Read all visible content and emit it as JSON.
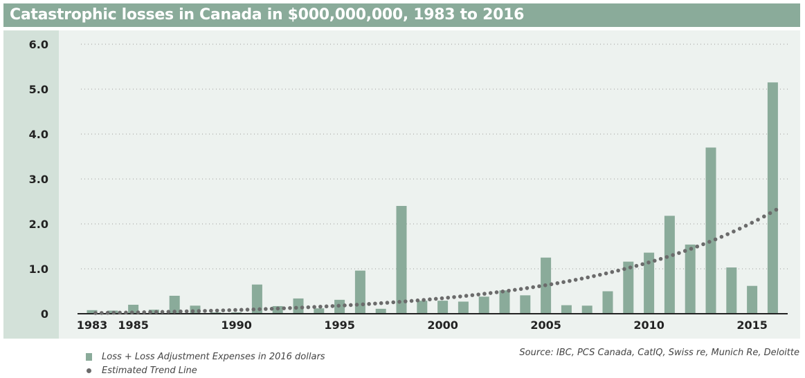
{
  "title": "Catastrophic losses in Canada in $000,000,000, 1983 to 2016",
  "source": "Source: IBC, PCS Canada, CatIQ, Swiss re, Munich Re, Deloitte",
  "legend": {
    "bars": "Loss + Loss Adjustment Expenses in 2016 dollars",
    "trend": "Estimated Trend Line"
  },
  "colors": {
    "bar": "#8aab9a",
    "trend": "#6b6b6b",
    "title_bg": "#8aab9a"
  },
  "chart_data": {
    "type": "bar",
    "xlabel": "",
    "ylabel": "",
    "ylim": [
      0,
      6.0
    ],
    "yticks": [
      "0",
      "1.0",
      "2.0",
      "3.0",
      "4.0",
      "5.0",
      "6.0"
    ],
    "xticks": [
      "1983",
      "1985",
      "1990",
      "1995",
      "2000",
      "2005",
      "2010",
      "2015"
    ],
    "grid": "horizontal dotted",
    "legend_position": "bottom-left",
    "categories": [
      1983,
      1984,
      1985,
      1986,
      1987,
      1988,
      1989,
      1990,
      1991,
      1992,
      1993,
      1994,
      1995,
      1996,
      1997,
      1998,
      1999,
      2000,
      2001,
      2002,
      2003,
      2004,
      2005,
      2006,
      2007,
      2008,
      2009,
      2010,
      2011,
      2012,
      2013,
      2014,
      2015,
      2016
    ],
    "series": [
      {
        "name": "Loss + Loss Adjustment Expenses in 2016 dollars",
        "type": "bar",
        "values": [
          0.08,
          0.07,
          0.2,
          0.09,
          0.4,
          0.18,
          0.03,
          0.03,
          0.65,
          0.17,
          0.34,
          0.12,
          0.31,
          0.96,
          0.11,
          2.4,
          0.29,
          0.29,
          0.27,
          0.38,
          0.52,
          0.41,
          1.25,
          0.19,
          0.18,
          0.5,
          1.16,
          1.36,
          2.18,
          1.54,
          3.7,
          1.03,
          0.62,
          5.15
        ]
      },
      {
        "name": "Estimated Trend Line",
        "type": "dotted-line",
        "x": [
          1983,
          2016
        ],
        "values": [
          0.0,
          2.3
        ]
      }
    ]
  }
}
